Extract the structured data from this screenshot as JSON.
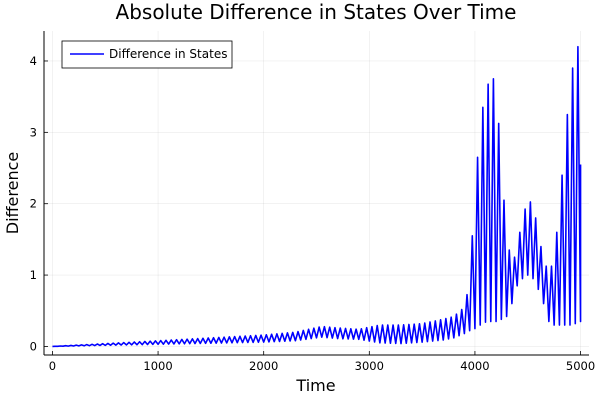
{
  "chart_data": {
    "type": "line",
    "title": "Absolute Difference in States Over Time",
    "xlabel": "Time",
    "ylabel": "Difference",
    "xlim": [
      -80,
      5080
    ],
    "ylim": [
      -0.12,
      4.42
    ],
    "xticks": [
      0,
      1000,
      2000,
      3000,
      4000,
      5000
    ],
    "xtick_labels": [
      "0",
      "1000",
      "2000",
      "3000",
      "4000",
      "5000"
    ],
    "yticks": [
      0,
      1,
      2,
      3,
      4
    ],
    "ytick_labels": [
      "0",
      "1",
      "2",
      "3",
      "4"
    ],
    "grid": true,
    "legend": {
      "placement": "top-left",
      "entries": [
        "Difference in States"
      ]
    },
    "series": [
      {
        "name": "Difference in States",
        "color": "#0000ff",
        "oscillation_period": 50,
        "envelope": {
          "t": [
            0,
            500,
            1000,
            1500,
            2000,
            2300,
            2550,
            2700,
            2900,
            3100,
            3300,
            3500,
            3700,
            3800,
            3900,
            3950,
            4000,
            4050,
            4100,
            4150,
            4200,
            4250,
            4300,
            4350,
            4400,
            4450,
            4500,
            4550,
            4600,
            4650,
            4700,
            4750,
            4800,
            4850,
            4900,
            4950,
            5000
          ],
          "upper": [
            0.0,
            0.04,
            0.08,
            0.12,
            0.16,
            0.2,
            0.28,
            0.26,
            0.24,
            0.3,
            0.3,
            0.32,
            0.38,
            0.42,
            0.55,
            0.9,
            2.2,
            3.1,
            3.6,
            3.75,
            3.75,
            2.5,
            1.6,
            1.1,
            1.4,
            1.8,
            2.05,
            2.0,
            1.6,
            1.2,
            1.05,
            1.2,
            2.0,
            2.8,
            3.7,
            4.1,
            4.3
          ],
          "lower": [
            0.0,
            0.015,
            0.03,
            0.045,
            0.06,
            0.08,
            0.13,
            0.11,
            0.1,
            0.05,
            0.04,
            0.06,
            0.09,
            0.12,
            0.18,
            0.22,
            0.25,
            0.3,
            0.34,
            0.35,
            0.35,
            0.38,
            0.42,
            0.6,
            0.85,
            0.95,
            1.0,
            0.95,
            0.8,
            0.6,
            0.35,
            0.3,
            0.3,
            0.3,
            0.3,
            0.32,
            0.35
          ],
          "final_value": 2.55
        }
      }
    ]
  }
}
